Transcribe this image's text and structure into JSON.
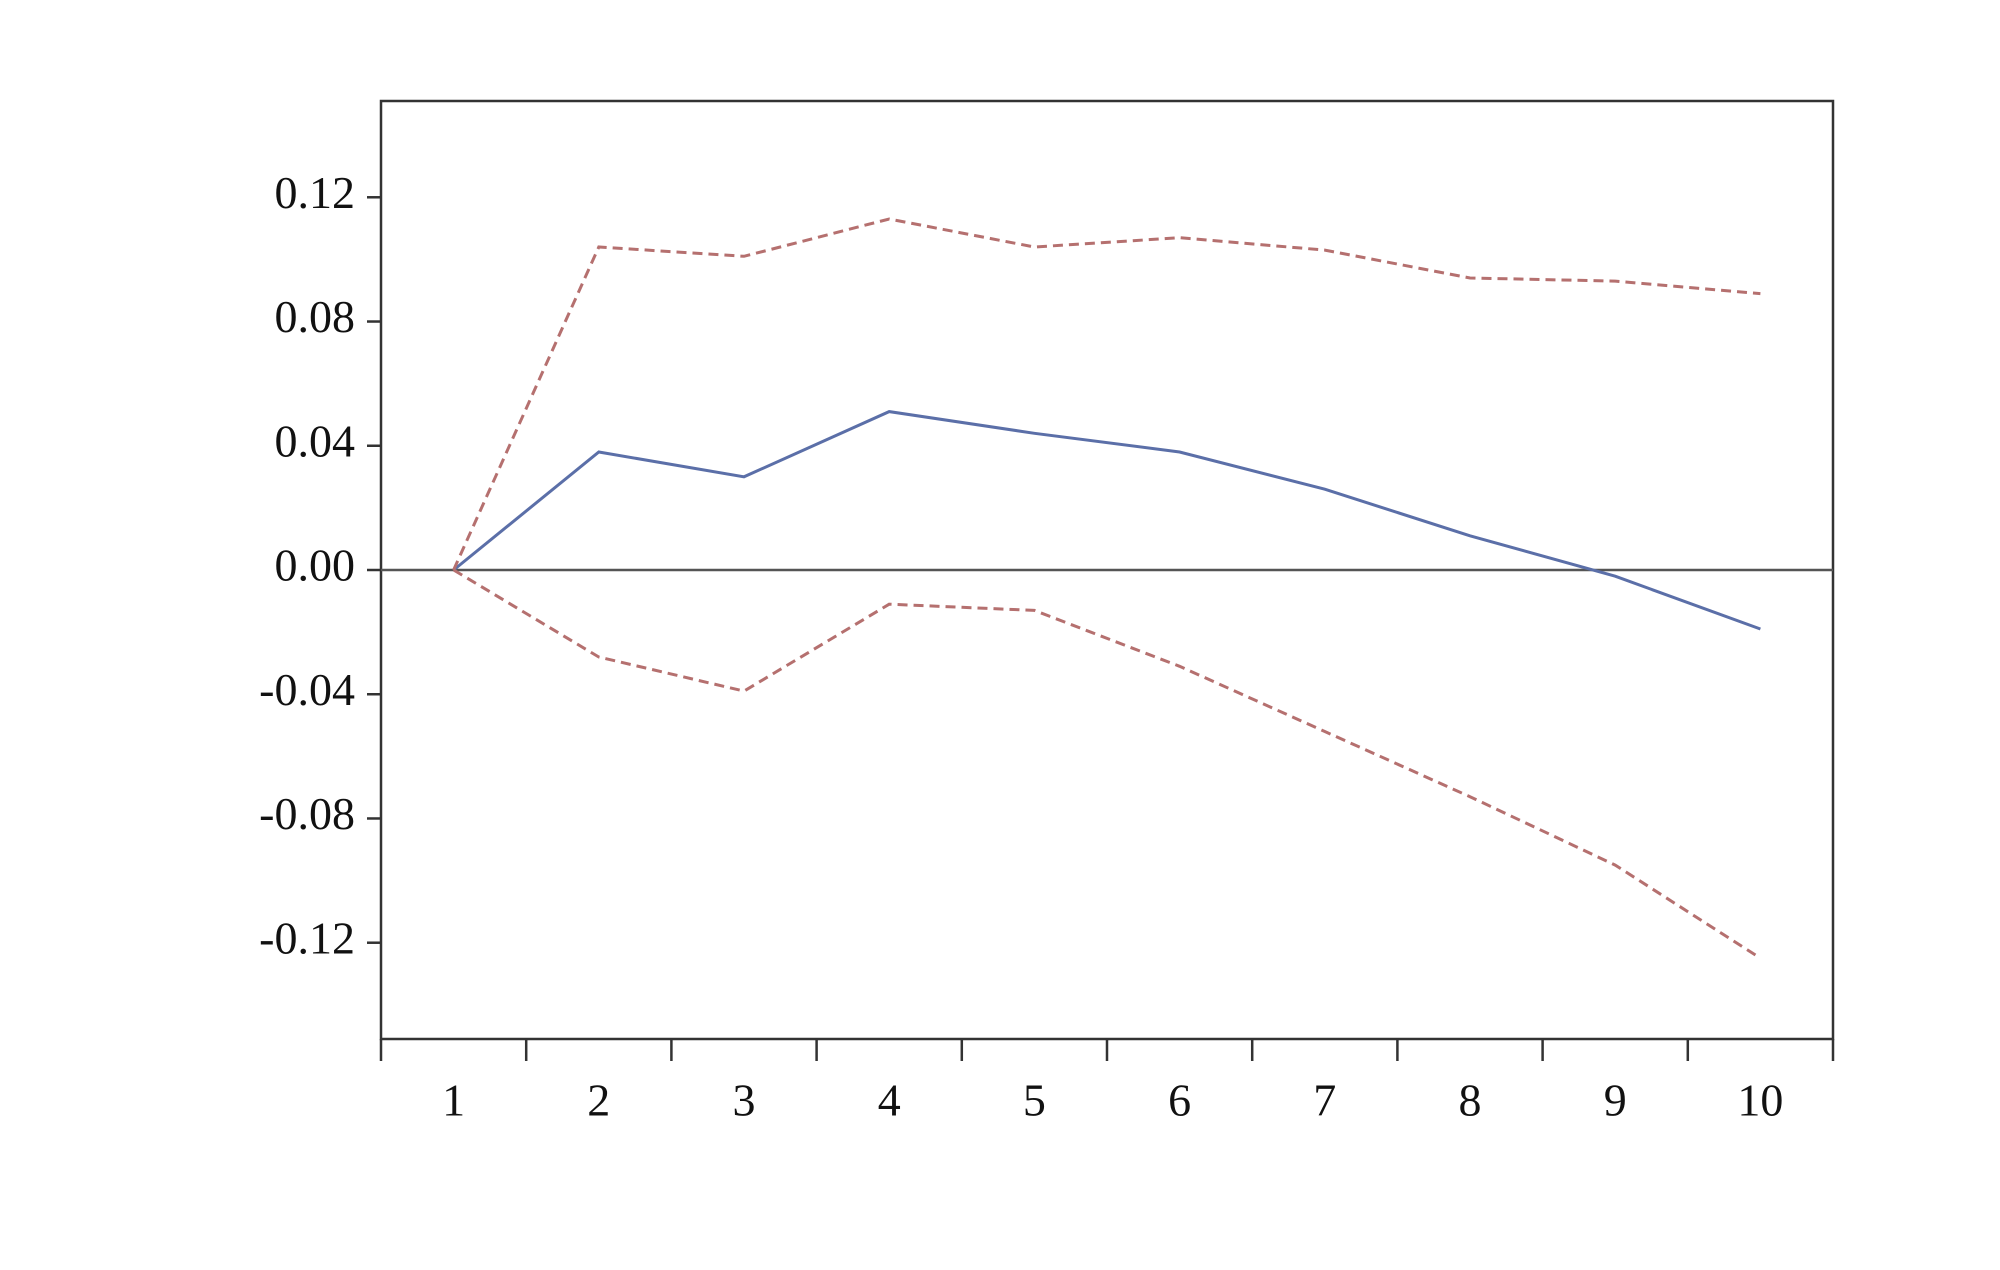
{
  "chart_data": {
    "type": "line",
    "categories": [
      "1",
      "2",
      "3",
      "4",
      "5",
      "6",
      "7",
      "8",
      "9",
      "10"
    ],
    "series": [
      {
        "color": "#5b6fa8",
        "dash": "solid",
        "values": [
          0,
          0.038,
          0.03,
          0.051,
          0.044,
          0.038,
          0.026,
          0.011,
          -0.002,
          -0.019
        ]
      },
      {
        "color": "#b5706f",
        "dash": "dashed",
        "values": [
          0,
          0.104,
          0.101,
          0.113,
          0.104,
          0.107,
          0.103,
          0.094,
          0.093,
          0.089
        ]
      },
      {
        "color": "#b5706f",
        "dash": "dashed",
        "values": [
          0,
          -0.028,
          -0.039,
          -0.011,
          -0.013,
          -0.031,
          -0.052,
          -0.073,
          -0.095,
          -0.125
        ]
      }
    ],
    "ylim": [
      -0.151,
      0.151
    ],
    "yticks": [
      0.12,
      0.08,
      0.04,
      {
        "value": 0,
        "label": "0.00"
      },
      -0.04,
      -0.08,
      -0.12
    ],
    "zero_line": true,
    "grid": false
  }
}
